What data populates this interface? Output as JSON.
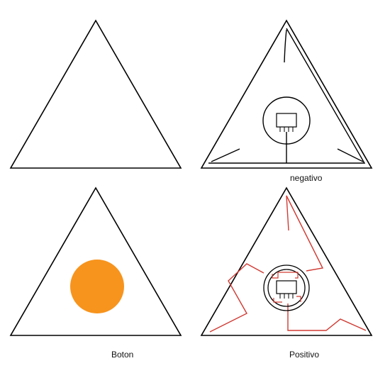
{
  "captions": {
    "negativo": "negativo",
    "boton": "Boton",
    "positivo": "Positivo"
  },
  "colors": {
    "stroke": "#000000",
    "button_fill": "#F7941D",
    "wire_red": "#D03A33",
    "background": "#FFFFFF"
  }
}
